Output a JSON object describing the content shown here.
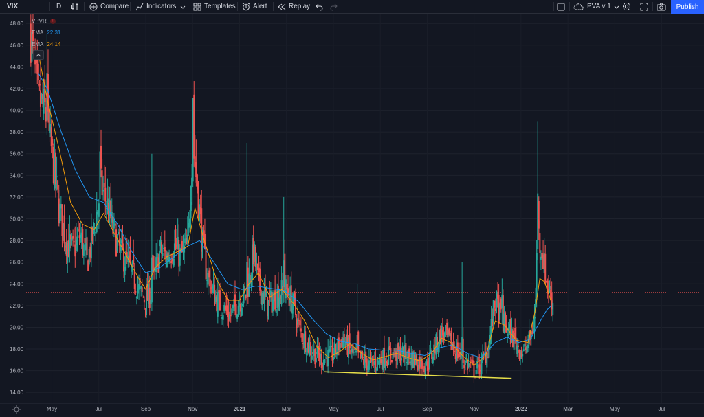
{
  "toolbar": {
    "symbol": "VIX",
    "interval": "D",
    "compare": "Compare",
    "indicators": "Indicators",
    "templates": "Templates",
    "alert": "Alert",
    "replay": "Replay",
    "layout_name": "PVA v 1",
    "publish": "Publish"
  },
  "legend": {
    "vpvr": "VPVR",
    "ema1_label": "EMA",
    "ema1_value": "22.31",
    "ema2_label": "EMA",
    "ema2_value": "24.14"
  },
  "colors": {
    "background": "#131722",
    "up": "#26a69a",
    "down": "#ef5350",
    "ema_fast": "#f59e0b",
    "ema_slow": "#2196f3",
    "trendline": "#e8e04a",
    "accent": "#2962ff"
  },
  "chart_data": {
    "type": "candlestick",
    "y_ticks": [
      "48.00",
      "46.00",
      "44.00",
      "42.00",
      "40.00",
      "38.00",
      "36.00",
      "34.00",
      "32.00",
      "30.00",
      "28.00",
      "26.00",
      "24.00",
      "22.00",
      "20.00",
      "18.00",
      "16.00",
      "14.00"
    ],
    "ylim": [
      13,
      48.9
    ],
    "x_ticks": [
      "May",
      "Jul",
      "Sep",
      "Nov",
      "2021",
      "Mar",
      "May",
      "Jul",
      "Sep",
      "Nov",
      "2022",
      "Mar",
      "May",
      "Jul"
    ],
    "x_tick_months": [
      0,
      2,
      4,
      6,
      8,
      10,
      12,
      14,
      16,
      18,
      20,
      22,
      24,
      26
    ],
    "x_range_months": [
      -1.1,
      27.8
    ],
    "last_price_line": 23.2,
    "close_path": [
      [
        -0.9,
        47
      ],
      [
        -0.6,
        41
      ],
      [
        -0.3,
        40
      ],
      [
        0,
        36
      ],
      [
        0.3,
        31
      ],
      [
        0.6,
        28
      ],
      [
        0.9,
        27
      ],
      [
        1.2,
        28.5
      ],
      [
        1.5,
        26
      ],
      [
        1.8,
        29
      ],
      [
        2.1,
        33
      ],
      [
        2.4,
        31
      ],
      [
        2.6,
        29
      ],
      [
        2.9,
        27
      ],
      [
        3.2,
        26
      ],
      [
        3.5,
        24.5
      ],
      [
        3.8,
        23
      ],
      [
        4.0,
        22.5
      ],
      [
        4.2,
        23
      ],
      [
        4.4,
        25
      ],
      [
        4.6,
        27
      ],
      [
        4.9,
        26.5
      ],
      [
        5.2,
        27.5
      ],
      [
        5.5,
        26.5
      ],
      [
        5.8,
        27.5
      ],
      [
        6.0,
        37
      ],
      [
        6.2,
        33
      ],
      [
        6.4,
        28
      ],
      [
        6.6,
        25
      ],
      [
        6.9,
        23
      ],
      [
        7.2,
        22
      ],
      [
        7.6,
        21
      ],
      [
        8.0,
        22.5
      ],
      [
        8.3,
        23
      ],
      [
        8.6,
        27
      ],
      [
        8.8,
        24
      ],
      [
        9.2,
        22
      ],
      [
        9.6,
        23
      ],
      [
        10.0,
        23.5
      ],
      [
        10.3,
        22
      ],
      [
        10.6,
        19.5
      ],
      [
        11.0,
        18
      ],
      [
        11.5,
        17
      ],
      [
        12.0,
        17.5
      ],
      [
        12.4,
        19
      ],
      [
        12.8,
        17.5
      ],
      [
        13.2,
        17
      ],
      [
        13.6,
        16.5
      ],
      [
        14.0,
        17
      ],
      [
        14.5,
        17.5
      ],
      [
        15.0,
        17.5
      ],
      [
        15.5,
        17
      ],
      [
        16.0,
        16.5
      ],
      [
        16.3,
        18
      ],
      [
        16.6,
        19.5
      ],
      [
        17.0,
        18.5
      ],
      [
        17.5,
        17
      ],
      [
        18.0,
        16
      ],
      [
        18.3,
        16.5
      ],
      [
        18.6,
        18
      ],
      [
        18.9,
        22.5
      ],
      [
        19.2,
        20.5
      ],
      [
        19.5,
        19.5
      ],
      [
        19.8,
        18.5
      ],
      [
        20.1,
        17.5
      ],
      [
        20.4,
        19
      ],
      [
        20.6,
        21
      ],
      [
        20.7,
        29
      ],
      [
        20.9,
        27
      ],
      [
        21.1,
        24
      ],
      [
        21.4,
        22
      ]
    ],
    "spikes": [
      [
        -0.2,
        47
      ],
      [
        2.05,
        44.5
      ],
      [
        4.25,
        36
      ],
      [
        6.0,
        41
      ],
      [
        8.3,
        37
      ],
      [
        9.9,
        32
      ],
      [
        13.0,
        24
      ],
      [
        17.5,
        26
      ],
      [
        19.2,
        24.5
      ],
      [
        20.7,
        39
      ]
    ],
    "ema_fast": [
      [
        -0.6,
        45.5
      ],
      [
        -0.2,
        41
      ],
      [
        0.3,
        36.5
      ],
      [
        0.8,
        31.5
      ],
      [
        1.3,
        29.5
      ],
      [
        1.8,
        29
      ],
      [
        2.2,
        30.5
      ],
      [
        2.7,
        28.5
      ],
      [
        3.2,
        26.5
      ],
      [
        3.7,
        24.5
      ],
      [
        4.0,
        23.5
      ],
      [
        4.4,
        25.5
      ],
      [
        4.9,
        26.5
      ],
      [
        5.4,
        27
      ],
      [
        5.8,
        27.5
      ],
      [
        6.1,
        31
      ],
      [
        6.5,
        28
      ],
      [
        7.0,
        24.5
      ],
      [
        7.5,
        22.5
      ],
      [
        8.0,
        22.5
      ],
      [
        8.4,
        24
      ],
      [
        8.8,
        25
      ],
      [
        9.3,
        22.8
      ],
      [
        9.8,
        23.5
      ],
      [
        10.3,
        22.2
      ],
      [
        10.8,
        20.5
      ],
      [
        11.3,
        18.2
      ],
      [
        11.8,
        17.2
      ],
      [
        12.3,
        17.8
      ],
      [
        12.7,
        18.5
      ],
      [
        13.2,
        17.6
      ],
      [
        13.7,
        17
      ],
      [
        14.2,
        17.3
      ],
      [
        14.7,
        17.6
      ],
      [
        15.2,
        17.2
      ],
      [
        15.7,
        16.9
      ],
      [
        16.2,
        17.6
      ],
      [
        16.6,
        19
      ],
      [
        17.0,
        18.6
      ],
      [
        17.5,
        17.4
      ],
      [
        18.0,
        16.5
      ],
      [
        18.5,
        17.4
      ],
      [
        18.9,
        20.6
      ],
      [
        19.3,
        20.2
      ],
      [
        19.8,
        18.8
      ],
      [
        20.3,
        18.6
      ],
      [
        20.6,
        21.5
      ],
      [
        20.8,
        24.5
      ],
      [
        21.0,
        24.2
      ],
      [
        21.3,
        22.3
      ]
    ],
    "ema_slow": [
      [
        -0.6,
        43.5
      ],
      [
        -0.2,
        42
      ],
      [
        0.4,
        38
      ],
      [
        1.0,
        34.5
      ],
      [
        1.6,
        32
      ],
      [
        2.2,
        31.5
      ],
      [
        2.8,
        29.5
      ],
      [
        3.4,
        27
      ],
      [
        4.0,
        25
      ],
      [
        4.6,
        25.5
      ],
      [
        5.2,
        26.5
      ],
      [
        5.8,
        27.5
      ],
      [
        6.3,
        28
      ],
      [
        6.9,
        26
      ],
      [
        7.5,
        24
      ],
      [
        8.1,
        23.5
      ],
      [
        8.7,
        23.8
      ],
      [
        9.3,
        23.6
      ],
      [
        9.9,
        23.4
      ],
      [
        10.5,
        22.4
      ],
      [
        11.1,
        20.8
      ],
      [
        11.7,
        19.4
      ],
      [
        12.3,
        18.7
      ],
      [
        12.9,
        18.5
      ],
      [
        13.5,
        18
      ],
      [
        14.1,
        17.9
      ],
      [
        14.7,
        17.9
      ],
      [
        15.3,
        17.6
      ],
      [
        15.9,
        17.4
      ],
      [
        16.5,
        18.1
      ],
      [
        17.1,
        18.4
      ],
      [
        17.7,
        17.6
      ],
      [
        18.3,
        17.2
      ],
      [
        18.9,
        18.6
      ],
      [
        19.4,
        19.1
      ],
      [
        19.9,
        18.6
      ],
      [
        20.4,
        18.9
      ],
      [
        20.8,
        20.5
      ],
      [
        21.1,
        21.6
      ],
      [
        21.3,
        22
      ]
    ],
    "trendline": [
      [
        11.6,
        15.9
      ],
      [
        19.6,
        15.3
      ]
    ]
  }
}
